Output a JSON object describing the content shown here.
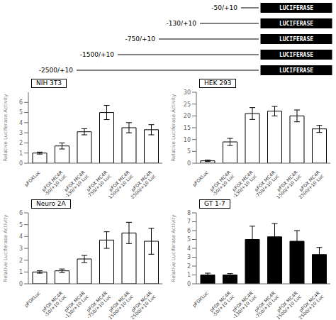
{
  "annotations": [
    "-50/+10",
    "-130/+10",
    "-750/+10",
    "-1500/+10",
    "-2500/+10",
    "LUCIFERASE"
  ],
  "chart_data": [
    {
      "type": "bar",
      "title": "NIH  3T3",
      "ylabel": "Relative Luciferase Activity",
      "categories": [
        "pFOXLuc",
        "pFOX MC4R\n-50/+10 Luc",
        "pFOX MC4R\n-130/+10 Luc",
        "pFOX MC4R\n-750/+10 Luc",
        "pFOX MC4R\n-1500/+10 Luc",
        "pFOX MC4R\n-2500/+10 Luc"
      ],
      "values": [
        1.0,
        1.7,
        3.1,
        5.0,
        3.5,
        3.3
      ],
      "errors": [
        0.1,
        0.3,
        0.3,
        0.7,
        0.5,
        0.5
      ],
      "ylim": [
        0,
        7
      ],
      "yticks": [
        0,
        1,
        2,
        3,
        4,
        5,
        6
      ],
      "color": "white",
      "grid": false
    },
    {
      "type": "bar",
      "title": "HEK  293",
      "ylabel": "Relative Luciferase Activity",
      "categories": [
        "pFOXLuc",
        "pFOX MC4R\n-50/+10 Luc",
        "pFOX MC4R\n-130/+10 Luc",
        "pFOX MC4R\n-750/+10 Luc",
        "pFOX MC4R\n-1500/+10 Luc",
        "pFOX MC4R\n-2500/+10 Luc"
      ],
      "values": [
        1.0,
        9.0,
        21.0,
        22.0,
        20.0,
        14.5
      ],
      "errors": [
        0.3,
        1.5,
        2.5,
        2.0,
        2.5,
        1.5
      ],
      "ylim": [
        0,
        30
      ],
      "yticks": [
        0,
        5,
        10,
        15,
        20,
        25,
        30
      ],
      "color": "white",
      "grid": false
    },
    {
      "type": "bar",
      "title": "Neuro  2A",
      "ylabel": "Relative Luciferase Activity",
      "categories": [
        "pFOXLuc",
        "pFOX MC4R\n-50/+10 Luc",
        "pFOX MC4R\n-130/+10 Luc",
        "pFOX MC4R\n-750/+10 Luc",
        "pFOX MC4R\n-1500/+10 Luc",
        "pFOX MC4R\n-2500/+10 Luc"
      ],
      "values": [
        1.0,
        1.1,
        2.1,
        3.7,
        4.3,
        3.6
      ],
      "errors": [
        0.1,
        0.15,
        0.3,
        0.7,
        0.9,
        1.1
      ],
      "ylim": [
        0,
        6
      ],
      "yticks": [
        0,
        1,
        2,
        3,
        4,
        5,
        6
      ],
      "color": "white",
      "grid": false
    },
    {
      "type": "bar",
      "title": "GT  1-7",
      "ylabel": "Relative Luciferase Activity",
      "categories": [
        "pFOXLuc",
        "pFOX MC4R\n-50/+10 Luc",
        "pFOX MC4R\n-130/+10 Luc",
        "pFOX MC4R\n-750/+10 Luc",
        "pFOX MC4R\n-1500/+10 Luc",
        "pFOX MC4R\n-2500/+10 Luc"
      ],
      "values": [
        1.0,
        1.0,
        5.0,
        5.3,
        4.8,
        3.3
      ],
      "errors": [
        0.2,
        0.15,
        1.5,
        1.5,
        1.2,
        0.8
      ],
      "ylim": [
        0,
        8
      ],
      "yticks": [
        0,
        1,
        2,
        3,
        4,
        5,
        6,
        7,
        8
      ],
      "color": "black",
      "grid": false
    }
  ]
}
